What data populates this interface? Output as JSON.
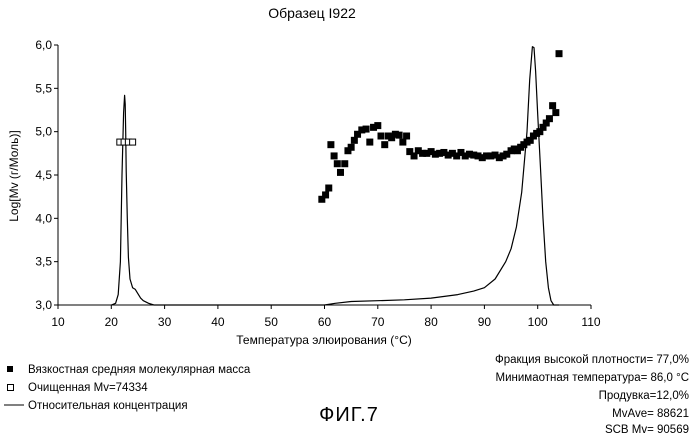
{
  "chart_data": {
    "type": "scatter",
    "title": "Образец I922",
    "xlabel": "Температура элюирования (°С)",
    "ylabel": "Log[Mv (г/Моль)]",
    "xlim": [
      10,
      110
    ],
    "ylim": [
      3.0,
      6.0
    ],
    "x_ticks": [
      "10",
      "20",
      "30",
      "40",
      "50",
      "60",
      "70",
      "80",
      "90",
      "100",
      "110"
    ],
    "y_ticks": [
      "3,0",
      "3,5",
      "4,0",
      "4,5",
      "5,0",
      "5,5",
      "6,0"
    ],
    "grid": false,
    "series": [
      {
        "name": "Вязкостная средняя молекулярная масса",
        "marker": "filled-square",
        "color": "#000000",
        "x": [
          59.5,
          60.2,
          60.8,
          61.2,
          61.8,
          62.4,
          63.0,
          63.8,
          64.4,
          65.0,
          65.6,
          66.2,
          67.0,
          67.8,
          68.5,
          69.2,
          70.0,
          70.6,
          71.3,
          72.0,
          72.6,
          73.3,
          74.0,
          74.7,
          75.4,
          76.0,
          76.8,
          77.6,
          78.4,
          79.2,
          80.0,
          80.8,
          81.6,
          82.4,
          83.2,
          84.0,
          84.8,
          85.6,
          86.4,
          87.2,
          88.0,
          88.8,
          89.6,
          90.4,
          91.2,
          92.0,
          92.8,
          93.5,
          94.2,
          95.0,
          95.6,
          96.2,
          96.8,
          97.4,
          98.0,
          98.6,
          99.2,
          99.8,
          100.4,
          101.0,
          101.6,
          102.2,
          102.8,
          103.4,
          104.0
        ],
        "y": [
          4.22,
          4.27,
          4.35,
          4.85,
          4.72,
          4.63,
          4.53,
          4.63,
          4.78,
          4.82,
          4.9,
          4.97,
          5.02,
          5.03,
          4.88,
          5.05,
          5.07,
          4.95,
          4.85,
          4.95,
          4.93,
          4.97,
          4.96,
          4.88,
          4.95,
          4.77,
          4.72,
          4.78,
          4.75,
          4.75,
          4.77,
          4.74,
          4.75,
          4.76,
          4.73,
          4.75,
          4.72,
          4.76,
          4.72,
          4.74,
          4.73,
          4.72,
          4.7,
          4.72,
          4.72,
          4.73,
          4.7,
          4.72,
          4.74,
          4.78,
          4.8,
          4.78,
          4.82,
          4.85,
          4.88,
          4.9,
          4.95,
          4.98,
          5.0,
          5.05,
          5.1,
          5.15,
          5.3,
          5.22,
          5.9
        ]
      },
      {
        "name": "Очищенная Mv=74334",
        "marker": "open-square",
        "color": "#000000",
        "x": [
          21.6,
          22.4,
          23.2,
          24.0
        ],
        "y": [
          4.88,
          4.88,
          4.88,
          4.88
        ]
      },
      {
        "name": "Относительная концентрация",
        "marker": "line",
        "color": "#000000",
        "x": [
          20.0,
          20.8,
          21.3,
          21.7,
          22.0,
          22.3,
          22.5,
          22.6,
          22.7,
          22.8,
          23.0,
          23.2,
          23.5,
          24.0,
          24.5,
          25.0,
          25.5,
          26.0,
          27.0,
          28.0,
          30.0,
          40.0,
          50.0,
          58.0,
          60.0,
          62.0,
          65.0,
          70.0,
          75.0,
          80.0,
          85.0,
          88.0,
          90.0,
          92.0,
          94.0,
          95.0,
          96.0,
          97.0,
          98.0,
          98.5,
          99.0,
          99.3,
          99.6,
          100.0,
          100.5,
          101.0,
          101.5,
          102.0,
          102.5,
          103.0,
          103.5,
          104.0
        ],
        "y": [
          3.0,
          3.02,
          3.12,
          3.5,
          4.5,
          5.22,
          5.42,
          5.32,
          5.0,
          4.55,
          4.0,
          3.55,
          3.3,
          3.2,
          3.18,
          3.13,
          3.08,
          3.05,
          3.02,
          3.0,
          3.0,
          3.0,
          3.0,
          3.0,
          3.0,
          3.02,
          3.04,
          3.05,
          3.06,
          3.08,
          3.12,
          3.16,
          3.2,
          3.3,
          3.5,
          3.65,
          3.9,
          4.3,
          5.0,
          5.6,
          5.98,
          5.97,
          5.7,
          5.2,
          4.6,
          4.0,
          3.5,
          3.2,
          3.05,
          3.0,
          3.0,
          3.0
        ]
      }
    ],
    "legend_position": "bottom-left",
    "legend": [
      {
        "marker": "filled-square",
        "label": "Вязкостная средняя молекулярная масса"
      },
      {
        "marker": "open-square",
        "label": "Очищенная Mv=74334"
      },
      {
        "marker": "line",
        "label": "Относительная концентрация"
      }
    ],
    "annotations": [
      "Фракция высокой плотности= 77,0%",
      "Минимаотная температура= 86,0 °C",
      "Продувка=12,0%",
      "MvAve= 88621",
      "SCB Mv= 90569"
    ],
    "caption": "ФИГ.7"
  }
}
